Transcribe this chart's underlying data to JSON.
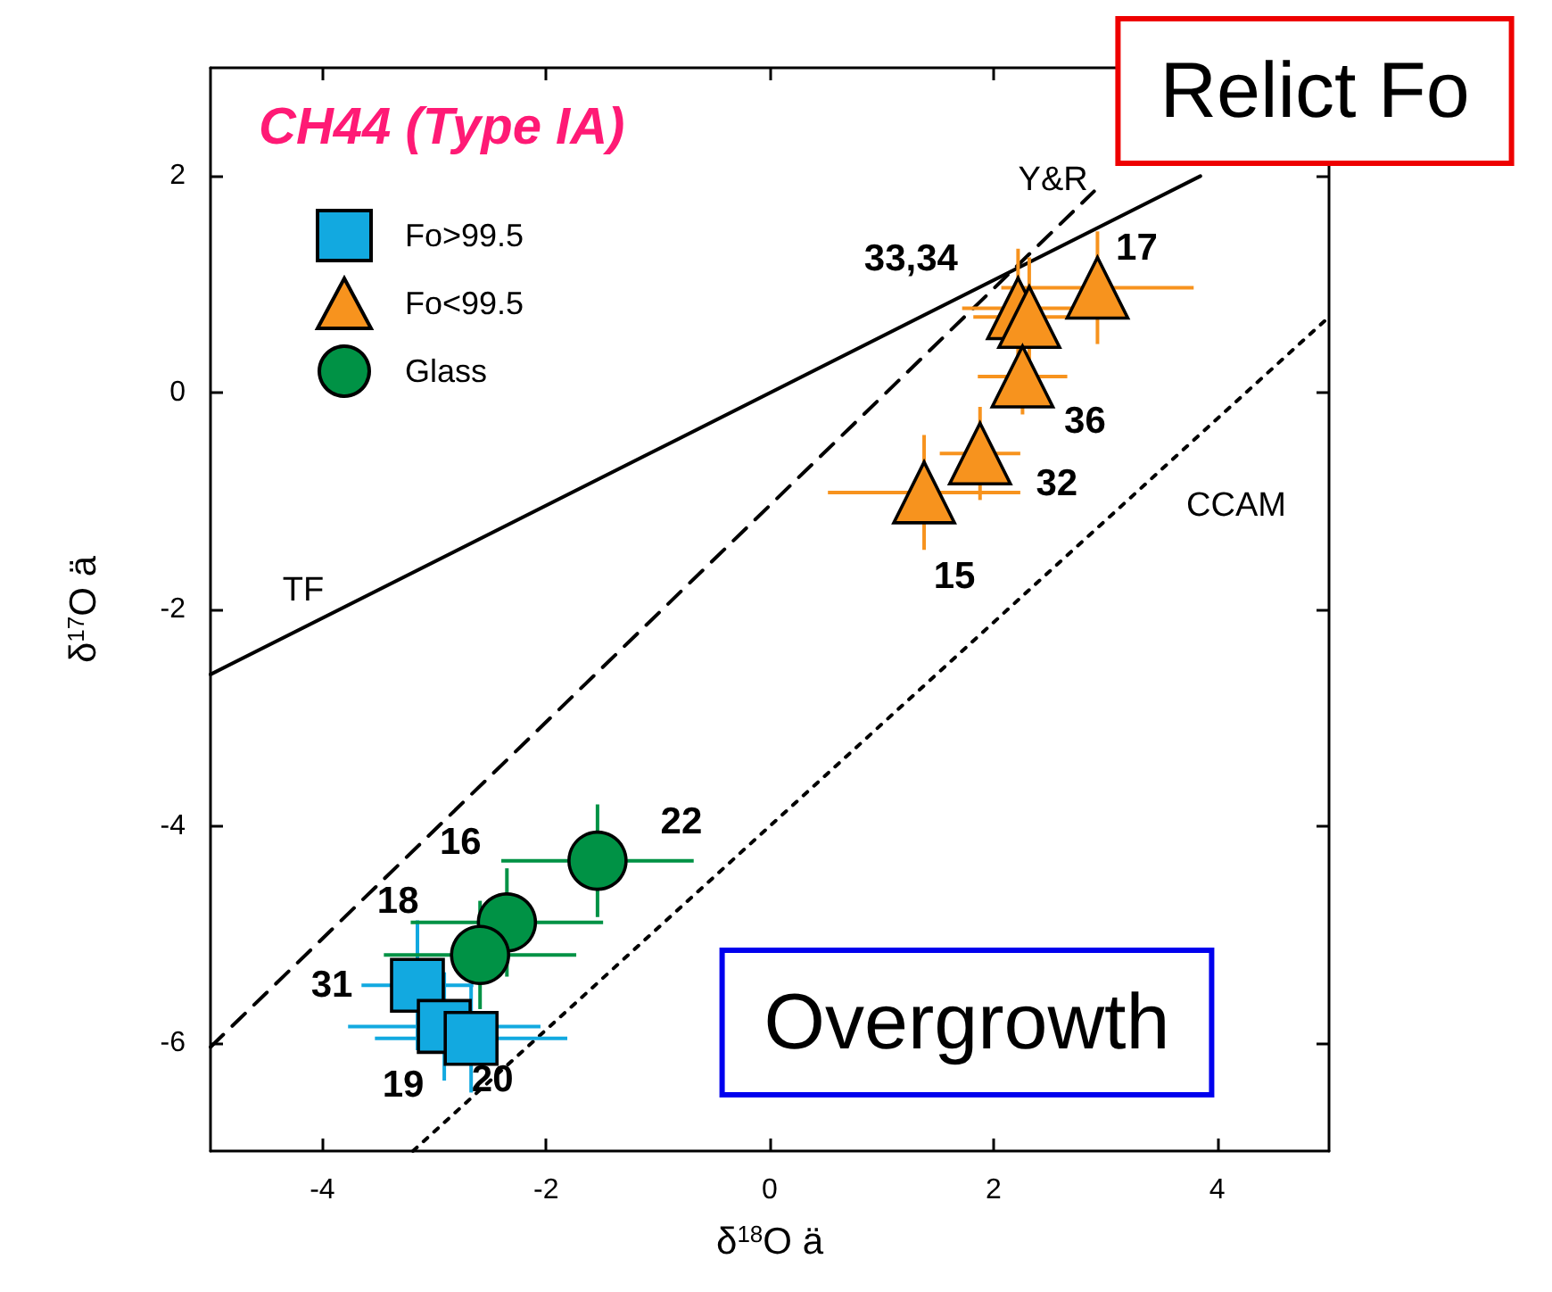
{
  "chart_data": {
    "type": "scatter",
    "title": "CH44 (Type IA)",
    "xlabel": "δ$^{18}$O ä",
    "ylabel": "δ$^{17}$O ä",
    "xlim": [
      -5,
      5
    ],
    "ylim": [
      -7,
      3
    ],
    "xticks": [
      -4,
      -2,
      0,
      2,
      4
    ],
    "yticks": [
      -6,
      -4,
      -2,
      0,
      2
    ],
    "grid": false,
    "legend": "top left",
    "series": [
      {
        "name": "Fo>99.5",
        "marker": "square",
        "color": "#12a9e0",
        "x": [
          -3.15,
          -2.91,
          -2.67
        ],
        "values": [
          -5.47,
          -5.85,
          -5.96
        ],
        "xerrors": [
          0.5,
          0.86,
          0.86
        ],
        "errors": [
          0.6,
          0.5,
          0.5
        ]
      },
      {
        "name": "Fo<99.5",
        "marker": "triangle",
        "color": "#f7931e",
        "x": [
          2.93,
          2.22,
          2.32,
          2.26,
          1.88,
          1.38
        ],
        "values": [
          0.97,
          0.78,
          0.7,
          0.15,
          -0.56,
          -0.92
        ],
        "xerrors": [
          0.86,
          0.5,
          0.5,
          0.4,
          0.36,
          0.86
        ],
        "errors": [
          0.52,
          0.55,
          0.55,
          0.35,
          0.43,
          0.53
        ]
      },
      {
        "name": "Glass",
        "marker": "circle",
        "color": "#009245",
        "x": [
          -1.54,
          -2.35,
          -2.59
        ],
        "values": [
          -4.32,
          -4.89,
          -5.19
        ],
        "xerrors": [
          0.86,
          0.86,
          0.86
        ],
        "errors": [
          0.52,
          0.5,
          0.5
        ]
      },
      {
        "name": "TF",
        "type": "line",
        "color": "#000000",
        "line_style": "solid",
        "marker": "none",
        "x": [
          -5,
          3.85
        ],
        "values": [
          -2.6,
          2.0
        ]
      },
      {
        "name": "Y&R",
        "type": "line",
        "color": "#000000",
        "line_style": "dashed",
        "marker": "none",
        "x": [
          -5,
          2.9
        ],
        "values": [
          -6.04,
          1.86
        ]
      },
      {
        "name": "CCAM",
        "type": "line",
        "color": "#000000",
        "line_style": "dotted",
        "marker": "none",
        "x": [
          -3.19,
          5
        ],
        "values": [
          -7,
          0.7
        ]
      }
    ],
    "annotations": [
      {
        "text": "31",
        "x": -3.15,
        "y": -5.47
      },
      {
        "text": "19",
        "x": -2.91,
        "y": -5.85
      },
      {
        "text": "20",
        "x": -2.67,
        "y": -5.96
      },
      {
        "text": "17",
        "x": 2.93,
        "y": 0.97
      },
      {
        "text": "33,34",
        "x": 2.22,
        "y": 0.78
      },
      {
        "text": "36",
        "x": 2.26,
        "y": 0.15
      },
      {
        "text": "32",
        "x": 1.88,
        "y": -0.56
      },
      {
        "text": "15",
        "x": 1.38,
        "y": -0.92
      },
      {
        "text": "22",
        "x": -1.54,
        "y": -4.32
      },
      {
        "text": "16",
        "x": -2.35,
        "y": -4.89
      },
      {
        "text": "18",
        "x": -2.59,
        "y": -5.19
      },
      "Relict Fo",
      "Overgrowth"
    ]
  }
}
